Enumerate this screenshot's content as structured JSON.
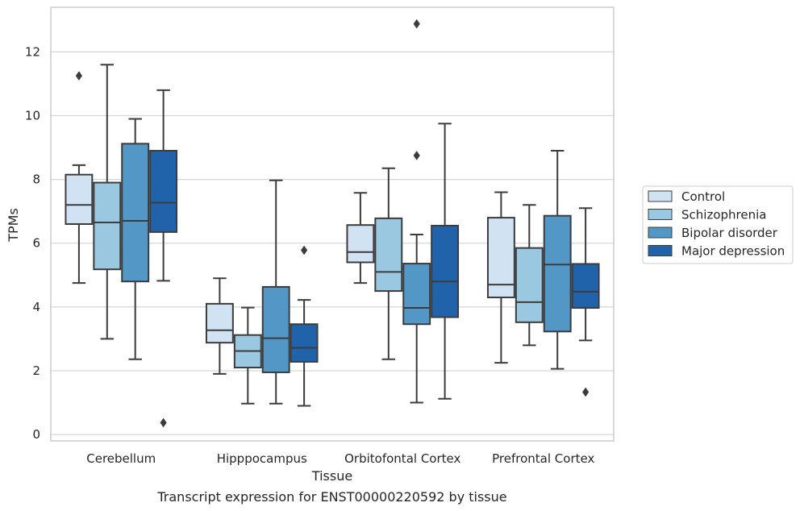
{
  "chart_data": {
    "type": "box",
    "title": "",
    "caption": "Transcript expression for ENST00000220592 by tissue",
    "xlabel": "Tissue",
    "ylabel": "TPMs",
    "ylim": [
      -0.2,
      13.4
    ],
    "yticks": [
      0,
      2,
      4,
      6,
      8,
      10,
      12
    ],
    "grid": "horizontal",
    "legend_position": "right",
    "categories": [
      "Cerebellum",
      "Hipppocampus",
      "Orbitofontal Cortex",
      "Prefrontal Cortex"
    ],
    "series": [
      {
        "name": "Control",
        "color": "#d1e2f2",
        "boxes": [
          {
            "whislo": 4.75,
            "q1": 6.6,
            "med": 7.2,
            "q3": 8.15,
            "whishi": 8.45,
            "fliers": [
              11.25
            ]
          },
          {
            "whislo": 1.9,
            "q1": 2.88,
            "med": 3.27,
            "q3": 4.1,
            "whishi": 4.9,
            "fliers": []
          },
          {
            "whislo": 4.75,
            "q1": 5.4,
            "med": 5.72,
            "q3": 6.57,
            "whishi": 7.58,
            "fliers": []
          },
          {
            "whislo": 2.25,
            "q1": 4.3,
            "med": 4.7,
            "q3": 6.8,
            "whishi": 7.6,
            "fliers": []
          }
        ]
      },
      {
        "name": "Schizophrenia",
        "color": "#9ac8e0",
        "boxes": [
          {
            "whislo": 3.0,
            "q1": 5.18,
            "med": 6.65,
            "q3": 7.9,
            "whishi": 11.6,
            "fliers": []
          },
          {
            "whislo": 0.97,
            "q1": 2.1,
            "med": 2.62,
            "q3": 3.12,
            "whishi": 3.98,
            "fliers": []
          },
          {
            "whislo": 2.36,
            "q1": 4.5,
            "med": 5.1,
            "q3": 6.78,
            "whishi": 8.35,
            "fliers": []
          },
          {
            "whislo": 2.8,
            "q1": 3.52,
            "med": 4.15,
            "q3": 5.85,
            "whishi": 7.2,
            "fliers": []
          }
        ]
      },
      {
        "name": "Bipolar disorder",
        "color": "#5297c6",
        "boxes": [
          {
            "whislo": 2.36,
            "q1": 4.8,
            "med": 6.7,
            "q3": 9.12,
            "whishi": 9.9,
            "fliers": []
          },
          {
            "whislo": 0.97,
            "q1": 1.95,
            "med": 3.02,
            "q3": 4.63,
            "whishi": 7.97,
            "fliers": []
          },
          {
            "whislo": 1.0,
            "q1": 3.46,
            "med": 3.97,
            "q3": 5.36,
            "whishi": 6.27,
            "fliers": [
              8.75,
              12.88
            ]
          },
          {
            "whislo": 2.06,
            "q1": 3.23,
            "med": 5.33,
            "q3": 6.86,
            "whishi": 8.9,
            "fliers": []
          }
        ]
      },
      {
        "name": "Major depression",
        "color": "#2163aa",
        "boxes": [
          {
            "whislo": 4.82,
            "q1": 6.35,
            "med": 7.27,
            "q3": 8.9,
            "whishi": 10.8,
            "fliers": [
              0.37
            ]
          },
          {
            "whislo": 0.9,
            "q1": 2.28,
            "med": 2.72,
            "q3": 3.46,
            "whishi": 4.22,
            "fliers": [
              5.78
            ]
          },
          {
            "whislo": 1.12,
            "q1": 3.68,
            "med": 4.8,
            "q3": 6.55,
            "whishi": 9.75,
            "fliers": []
          },
          {
            "whislo": 2.95,
            "q1": 3.97,
            "med": 4.48,
            "q3": 5.35,
            "whishi": 7.1,
            "fliers": [
              1.33
            ]
          }
        ]
      }
    ]
  }
}
